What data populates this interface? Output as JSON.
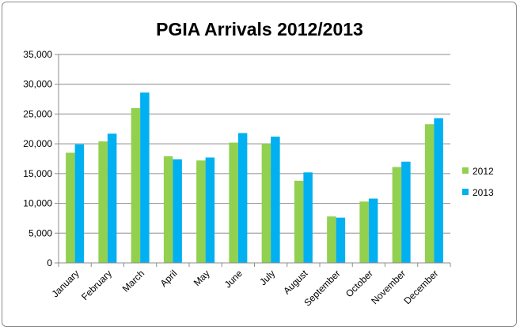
{
  "chart_data": {
    "type": "bar",
    "title": "PGIA Arrivals 2012/2013",
    "xlabel": "",
    "ylabel": "",
    "categories": [
      "January",
      "February",
      "March",
      "April",
      "May",
      "June",
      "July",
      "August",
      "September",
      "October",
      "November",
      "December"
    ],
    "series": [
      {
        "name": "2012",
        "color": "#92d050",
        "values": [
          18500,
          20400,
          26000,
          17900,
          17200,
          20200,
          20000,
          13800,
          7800,
          10300,
          16100,
          23300
        ]
      },
      {
        "name": "2013",
        "color": "#00b0f0",
        "values": [
          19900,
          21700,
          28600,
          17400,
          17700,
          21800,
          21200,
          15200,
          7600,
          10800,
          17000,
          24300
        ]
      }
    ],
    "ylim": [
      0,
      35000
    ],
    "yticks": [
      "0",
      "5,000",
      "10,000",
      "15,000",
      "20,000",
      "25,000",
      "30,000",
      "35,000"
    ],
    "grid": true,
    "legend_position": "right"
  }
}
